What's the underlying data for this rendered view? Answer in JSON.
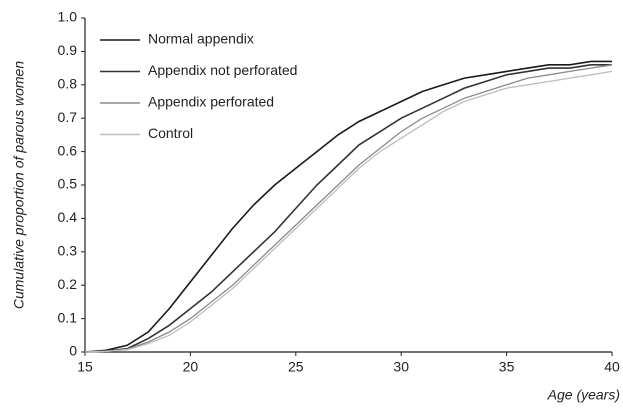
{
  "chart_data": {
    "type": "line",
    "x_label": "Age (years)",
    "y_label": "Cumulative proportion of parous women",
    "x": [
      15,
      16,
      17,
      18,
      19,
      20,
      21,
      22,
      23,
      24,
      25,
      26,
      27,
      28,
      29,
      30,
      31,
      32,
      33,
      34,
      35,
      36,
      37,
      38,
      39,
      40
    ],
    "series": [
      {
        "name": "Normal appendix",
        "color": "#1a1a1a",
        "values": [
          0,
          0.005,
          0.02,
          0.06,
          0.13,
          0.21,
          0.29,
          0.37,
          0.44,
          0.5,
          0.55,
          0.6,
          0.65,
          0.69,
          0.72,
          0.75,
          0.78,
          0.8,
          0.82,
          0.83,
          0.84,
          0.85,
          0.86,
          0.86,
          0.87,
          0.87
        ]
      },
      {
        "name": "Appendix not perforated",
        "color": "#333333",
        "values": [
          0,
          0.003,
          0.01,
          0.04,
          0.08,
          0.13,
          0.18,
          0.24,
          0.3,
          0.36,
          0.43,
          0.5,
          0.56,
          0.62,
          0.66,
          0.7,
          0.73,
          0.76,
          0.79,
          0.81,
          0.83,
          0.84,
          0.85,
          0.85,
          0.86,
          0.86
        ]
      },
      {
        "name": "Appendix perforated",
        "color": "#8a8a8a",
        "values": [
          0,
          0.002,
          0.008,
          0.03,
          0.06,
          0.1,
          0.15,
          0.2,
          0.26,
          0.32,
          0.38,
          0.44,
          0.5,
          0.56,
          0.61,
          0.66,
          0.7,
          0.73,
          0.76,
          0.78,
          0.8,
          0.82,
          0.83,
          0.84,
          0.85,
          0.86
        ]
      },
      {
        "name": "Control",
        "color": "#bdbdbd",
        "values": [
          0,
          0.002,
          0.007,
          0.025,
          0.05,
          0.09,
          0.14,
          0.19,
          0.25,
          0.31,
          0.37,
          0.43,
          0.49,
          0.55,
          0.6,
          0.64,
          0.68,
          0.72,
          0.75,
          0.77,
          0.79,
          0.8,
          0.81,
          0.82,
          0.83,
          0.84
        ]
      }
    ],
    "xlim": [
      15,
      40
    ],
    "xticks": [
      15,
      20,
      25,
      30,
      35,
      40
    ],
    "ylim": [
      0,
      1
    ],
    "yticks": [
      0,
      0.1,
      0.2,
      0.3,
      0.4,
      0.5,
      0.6,
      0.7,
      0.8,
      0.9,
      {
        "value": 1,
        "label": "1.0"
      }
    ],
    "grid": false,
    "legend": "upper left"
  }
}
